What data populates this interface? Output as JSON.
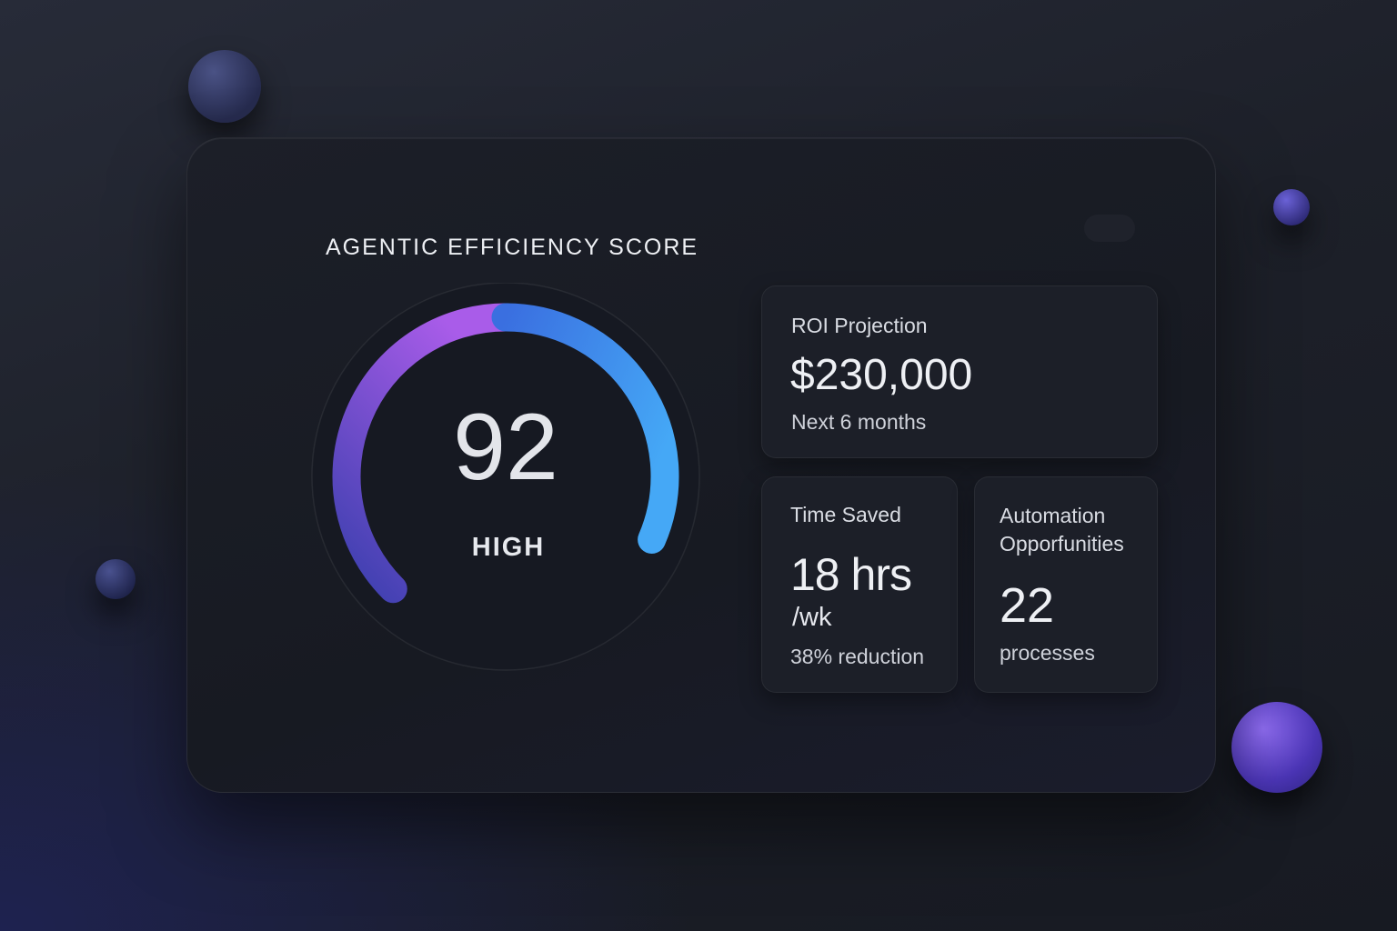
{
  "title": "AGENTIC EFFICIENCY SCORE",
  "gauge": {
    "score": "92",
    "level": "HIGH",
    "value_percent": 92,
    "colors": {
      "start": "#3b3fae",
      "mid": "#a95ce9",
      "blue": "#3a6fe0",
      "end": "#45a8f6"
    }
  },
  "roi": {
    "label": "ROI Projection",
    "value": "$230,000",
    "sub": "Next 6 months"
  },
  "time_saved": {
    "label": "Time Saved",
    "value": "18 hrs",
    "unit": "/wk",
    "sub": "38% reduction"
  },
  "automation": {
    "label_line1": "Automation",
    "label_line2": "Opporfunities",
    "value": "22",
    "sub": "processes"
  }
}
